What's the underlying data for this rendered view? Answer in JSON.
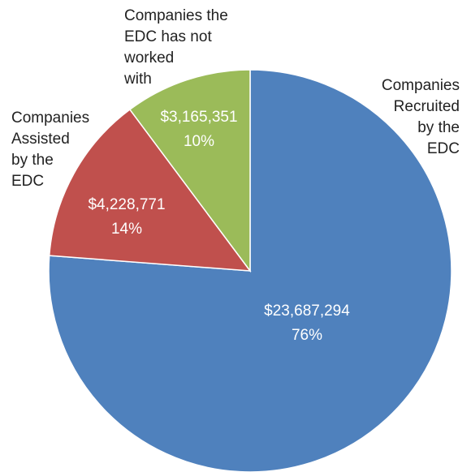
{
  "chart_data": {
    "type": "pie",
    "title": "",
    "slices": [
      {
        "label_lines": [
          "Companies",
          "Recruited",
          "by the",
          "EDC"
        ],
        "value": 23687294,
        "value_label": "$23,687,294",
        "percent_label": "76%",
        "color": "#4F81BD"
      },
      {
        "label_lines": [
          "Companies",
          "Assisted",
          "by the",
          "EDC"
        ],
        "value": 4228771,
        "value_label": "$4,228,771",
        "percent_label": "14%",
        "color": "#C0504D"
      },
      {
        "label_lines": [
          "Companies the",
          "EDC has not",
          "worked",
          "with"
        ],
        "value": 3165351,
        "value_label": "$3,165,351",
        "percent_label": "10%",
        "color": "#9BBB59"
      }
    ],
    "start_angle": "12 o'clock",
    "direction": "clockwise",
    "legend": "none"
  }
}
